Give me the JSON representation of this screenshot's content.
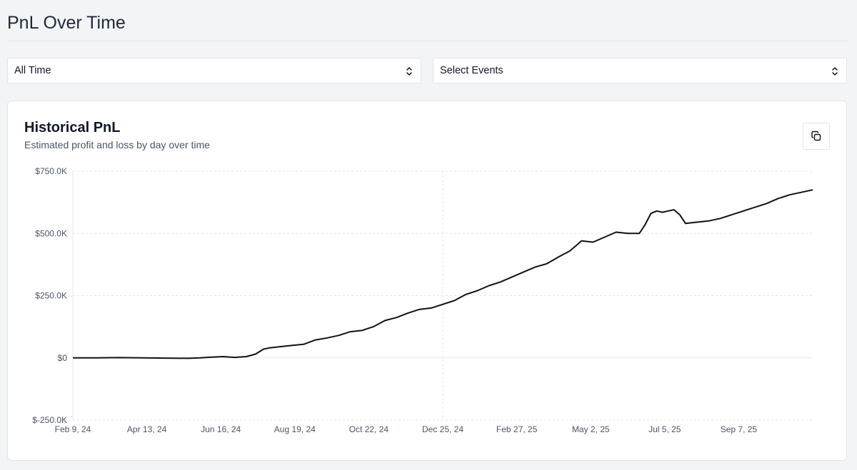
{
  "page": {
    "title": "PnL Over Time"
  },
  "filters": {
    "range": {
      "value": "All Time"
    },
    "events": {
      "value": "Select Events"
    }
  },
  "card": {
    "title": "Historical PnL",
    "subtitle": "Estimated profit and loss by day over time",
    "copy_icon": "copy-icon"
  },
  "colors": {
    "line": "#111111",
    "grid": "#e5e7eb",
    "background": "#f3f4f6"
  },
  "chart_data": {
    "type": "line",
    "title": "Historical PnL",
    "xlabel": "",
    "ylabel": "",
    "y_ticks": [
      "$750.0K",
      "$500.0K",
      "$250.0K",
      "$0",
      "$-250.0K"
    ],
    "y_tick_values": [
      750000,
      500000,
      250000,
      0,
      -250000
    ],
    "ylim": [
      -250000,
      750000
    ],
    "x_ticks": [
      "Feb 9, 24",
      "Apr 13, 24",
      "Jun 16, 24",
      "Aug 19, 24",
      "Oct 22, 24",
      "Dec 25, 24",
      "Feb 27, 25",
      "May 2, 25",
      "Jul 5, 25",
      "Sep 7, 25"
    ],
    "x_tick_days": [
      0,
      64,
      128,
      192,
      256,
      320,
      384,
      448,
      512,
      576
    ],
    "xlim_days": [
      0,
      640
    ],
    "grid": true,
    "series": [
      {
        "name": "PnL",
        "x_days": [
          0,
          20,
          40,
          60,
          80,
          100,
          110,
          120,
          130,
          140,
          150,
          158,
          165,
          170,
          180,
          190,
          200,
          210,
          220,
          230,
          240,
          250,
          260,
          270,
          280,
          290,
          300,
          310,
          320,
          330,
          340,
          350,
          360,
          370,
          380,
          390,
          400,
          410,
          420,
          430,
          440,
          450,
          460,
          470,
          480,
          490,
          495,
          500,
          505,
          510,
          515,
          520,
          525,
          530,
          540,
          550,
          560,
          570,
          580,
          590,
          600,
          610,
          620,
          630,
          640
        ],
        "values": [
          0,
          0,
          1000,
          0,
          -1000,
          -2000,
          0,
          3000,
          5000,
          2000,
          5000,
          15000,
          35000,
          40000,
          45000,
          50000,
          55000,
          72000,
          80000,
          90000,
          105000,
          110000,
          125000,
          150000,
          162000,
          180000,
          195000,
          200000,
          215000,
          230000,
          255000,
          270000,
          290000,
          305000,
          325000,
          345000,
          365000,
          378000,
          405000,
          430000,
          470000,
          465000,
          485000,
          505000,
          500000,
          500000,
          535000,
          580000,
          590000,
          585000,
          590000,
          595000,
          575000,
          540000,
          545000,
          550000,
          560000,
          575000,
          590000,
          605000,
          620000,
          640000,
          655000,
          665000,
          675000
        ]
      }
    ]
  }
}
